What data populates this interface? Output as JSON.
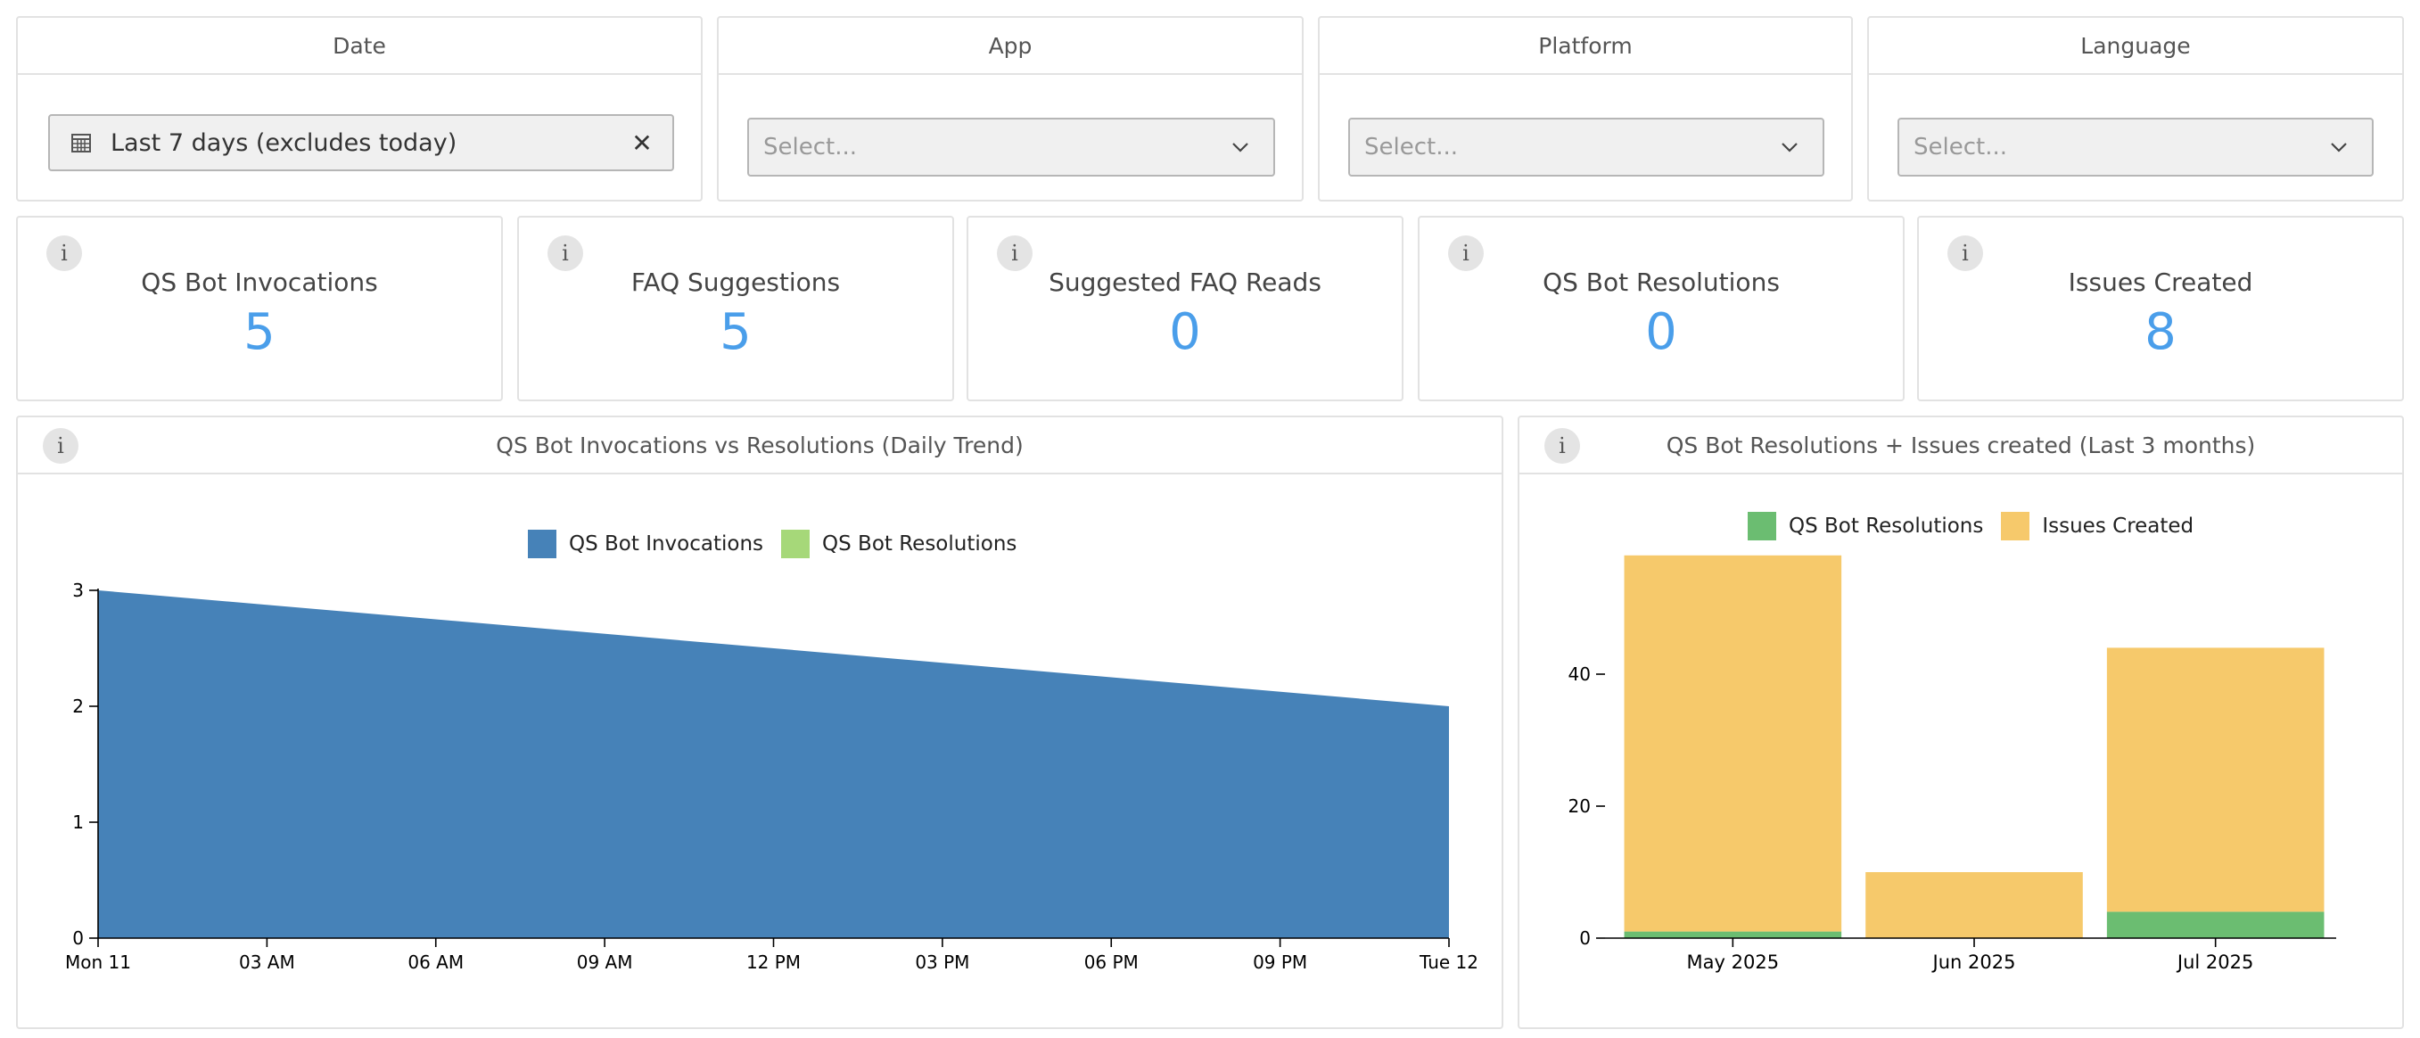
{
  "filters": {
    "date": {
      "label": "Date",
      "value": "Last 7 days (excludes today)",
      "clear_symbol": "✕"
    },
    "app": {
      "label": "App",
      "placeholder": "Select..."
    },
    "platform": {
      "label": "Platform",
      "placeholder": "Select..."
    },
    "language": {
      "label": "Language",
      "placeholder": "Select..."
    }
  },
  "info_symbol": "i",
  "kpis": [
    {
      "label": "QS Bot Invocations",
      "value": "5"
    },
    {
      "label": "FAQ Suggestions",
      "value": "5"
    },
    {
      "label": "Suggested FAQ Reads",
      "value": "0"
    },
    {
      "label": "QS Bot Resolutions",
      "value": "0"
    },
    {
      "label": "Issues Created",
      "value": "8"
    }
  ],
  "colors": {
    "kpi_value": "#4a9eea",
    "invocations": "#4682b8",
    "resolutions_area": "#a6d879",
    "resolutions_bar": "#6bbd71",
    "issues": "#f6c96b"
  },
  "trend_chart": {
    "title": "QS Bot Invocations vs Resolutions (Daily Trend)",
    "legend": [
      "QS Bot Invocations",
      "QS Bot Resolutions"
    ]
  },
  "monthly_chart": {
    "title": "QS Bot Resolutions + Issues created (Last 3 months)",
    "legend": [
      "QS Bot Resolutions",
      "Issues Created"
    ]
  },
  "chart_data": [
    {
      "type": "area",
      "title": "QS Bot Invocations vs Resolutions (Daily Trend)",
      "x_ticks": [
        "Mon 11",
        "03 AM",
        "06 AM",
        "09 AM",
        "12 PM",
        "03 PM",
        "06 PM",
        "09 PM",
        "Tue 12"
      ],
      "y_ticks": [
        0,
        1,
        2,
        3
      ],
      "ylim": [
        0,
        3
      ],
      "legend_position": "top-center",
      "series": [
        {
          "name": "QS Bot Invocations",
          "x": [
            "Mon 11",
            "Tue 12"
          ],
          "values": [
            3,
            2
          ]
        },
        {
          "name": "QS Bot Resolutions",
          "x": [
            "Mon 11",
            "Tue 12"
          ],
          "values": [
            0,
            0
          ]
        }
      ]
    },
    {
      "type": "bar",
      "stacked": true,
      "title": "QS Bot Resolutions + Issues created (Last 3 months)",
      "categories": [
        "May 2025",
        "Jun 2025",
        "Jul 2025"
      ],
      "y_ticks": [
        0,
        20,
        40
      ],
      "ylim": [
        0,
        60
      ],
      "legend_position": "top-center",
      "series": [
        {
          "name": "QS Bot Resolutions",
          "values": [
            1,
            0,
            4
          ]
        },
        {
          "name": "Issues Created",
          "values": [
            57,
            10,
            40
          ]
        }
      ]
    }
  ]
}
